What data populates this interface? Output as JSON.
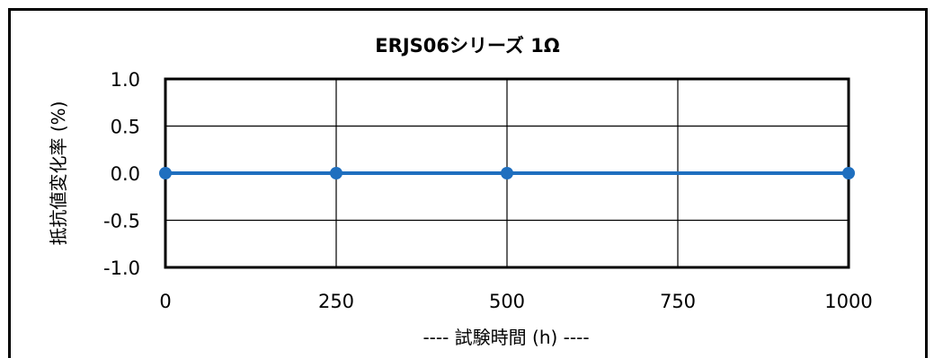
{
  "chart_data": {
    "type": "line",
    "title": "ERJS06シリーズ 1Ω",
    "xlabel": "---- 試験時間 (h) ----",
    "ylabel": "抵抗値変化率 (%)",
    "x": [
      0,
      250,
      500,
      1000
    ],
    "xticks": [
      0,
      250,
      500,
      750,
      1000
    ],
    "xtick_labels": [
      "0",
      "250",
      "500",
      "750",
      "1000"
    ],
    "xlim": [
      0,
      1000
    ],
    "ylim": [
      -1.0,
      1.0
    ],
    "yticks": [
      -1.0,
      -0.5,
      0.0,
      0.5,
      1.0
    ],
    "ytick_labels": [
      "-1.0",
      "-0.5",
      "0.0",
      "0.5",
      "1.0"
    ],
    "grid": true,
    "series": [
      {
        "values": [
          0.0,
          0.0,
          0.0,
          0.0
        ],
        "color": "#1f6fbf"
      }
    ]
  }
}
